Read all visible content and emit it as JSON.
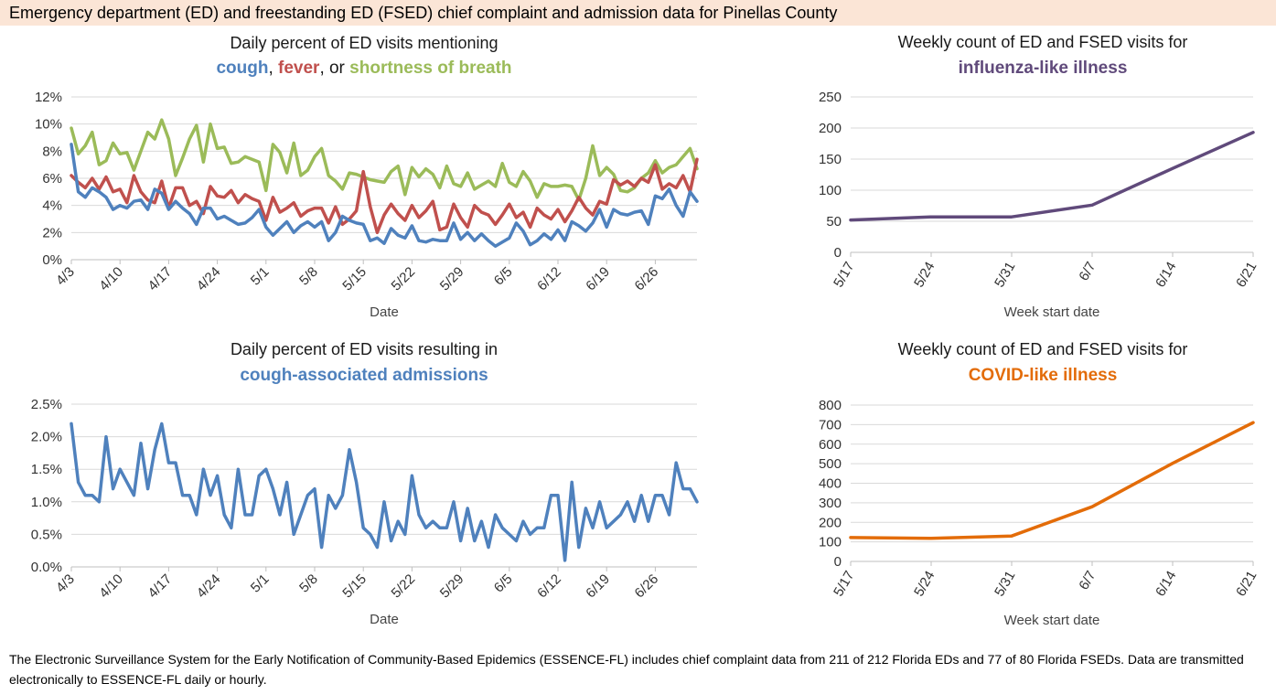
{
  "header": {
    "title": "Emergency department (ED) and freestanding ED (FSED) chief complaint and admission data for Pinellas County"
  },
  "footer": {
    "text": "The Electronic Surveillance System for the Early Notification of Community-Based Epidemics (ESSENCE-FL) includes chief complaint data from 211 of 212 Florida EDs and 77 of 80 Florida FSEDs. Data are transmitted electronically to ESSENCE-FL daily or hourly."
  },
  "chart_data": [
    {
      "id": "symptoms",
      "type": "line",
      "title": "Daily percent of ED visits mentioning",
      "subtitle_parts": [
        {
          "text": "cough",
          "color": "#4f81bd"
        },
        {
          "text": ", ",
          "color": "#1a1a1a"
        },
        {
          "text": "fever",
          "color": "#c0504d"
        },
        {
          "text": ", or ",
          "color": "#1a1a1a"
        },
        {
          "text": "shortness of breath",
          "color": "#9bbb59"
        }
      ],
      "xlabel": "Date",
      "ylabel": "",
      "ylim": [
        0,
        12
      ],
      "yticks": [
        "0%",
        "2%",
        "4%",
        "6%",
        "8%",
        "10%",
        "12%"
      ],
      "xticks": [
        "4/3",
        "4/10",
        "4/17",
        "4/24",
        "5/1",
        "5/8",
        "5/15",
        "5/22",
        "5/29",
        "6/5",
        "6/12",
        "6/19",
        "6/26"
      ],
      "n_points": 91,
      "series": [
        {
          "name": "shortness of breath",
          "color": "#9bbb59",
          "values": [
            9.7,
            7.8,
            8.4,
            9.4,
            7.0,
            7.3,
            8.6,
            7.8,
            7.9,
            6.6,
            8.0,
            9.4,
            8.9,
            10.3,
            8.9,
            6.2,
            7.5,
            8.9,
            9.9,
            7.2,
            10.0,
            8.2,
            8.3,
            7.1,
            7.2,
            7.6,
            7.4,
            7.2,
            5.1,
            8.5,
            7.9,
            6.4,
            8.6,
            6.2,
            6.6,
            7.6,
            8.2,
            6.2,
            5.8,
            5.2,
            6.4,
            6.3,
            6.1,
            5.9,
            5.8,
            5.7,
            6.5,
            6.9,
            4.8,
            6.8,
            6.1,
            6.7,
            6.3,
            5.3,
            6.9,
            5.6,
            5.4,
            6.4,
            5.2,
            5.5,
            5.8,
            5.4,
            7.1,
            5.7,
            5.4,
            6.5,
            5.8,
            4.6,
            5.6,
            5.4,
            5.4,
            5.5,
            5.4,
            4.4,
            6.0,
            8.4,
            6.2,
            6.8,
            6.3,
            5.1,
            5.0,
            5.3,
            6.0,
            6.4,
            7.3,
            6.4,
            6.8,
            7.0,
            7.6,
            8.2,
            6.7
          ]
        },
        {
          "name": "fever",
          "color": "#c0504d",
          "values": [
            6.2,
            5.7,
            5.3,
            6.0,
            5.2,
            6.1,
            5.0,
            5.2,
            4.2,
            6.2,
            5.0,
            4.4,
            4.2,
            5.8,
            3.8,
            5.3,
            5.3,
            4.0,
            4.3,
            3.4,
            5.4,
            4.7,
            4.6,
            5.1,
            4.2,
            4.8,
            4.5,
            4.3,
            2.9,
            4.6,
            3.5,
            3.8,
            4.2,
            3.2,
            3.6,
            3.8,
            3.8,
            2.7,
            3.9,
            2.6,
            3.0,
            3.6,
            6.5,
            3.9,
            2.0,
            3.3,
            4.1,
            3.4,
            2.9,
            4.0,
            3.1,
            3.6,
            4.3,
            2.2,
            2.4,
            4.1,
            3.1,
            2.4,
            4.0,
            3.5,
            3.3,
            2.6,
            3.3,
            4.1,
            3.1,
            3.5,
            2.4,
            3.8,
            3.3,
            3.0,
            3.7,
            2.8,
            3.6,
            4.6,
            3.8,
            3.3,
            4.3,
            4.1,
            5.9,
            5.5,
            5.8,
            5.4,
            6.0,
            5.7,
            7.0,
            5.2,
            5.6,
            5.3,
            6.2,
            5.0,
            7.4
          ]
        },
        {
          "name": "cough",
          "color": "#4f81bd",
          "values": [
            8.5,
            5.0,
            4.6,
            5.3,
            5.0,
            4.6,
            3.7,
            4.0,
            3.8,
            4.3,
            4.4,
            3.7,
            5.2,
            4.9,
            3.7,
            4.3,
            3.8,
            3.4,
            2.6,
            3.8,
            3.8,
            3.0,
            3.2,
            2.9,
            2.6,
            2.7,
            3.1,
            3.7,
            2.4,
            1.8,
            2.3,
            2.8,
            2.0,
            2.5,
            2.8,
            2.4,
            2.8,
            1.4,
            2.0,
            3.2,
            2.9,
            2.7,
            2.6,
            1.4,
            1.6,
            1.2,
            2.3,
            1.8,
            1.6,
            2.5,
            1.4,
            1.3,
            1.5,
            1.4,
            1.4,
            2.7,
            1.5,
            2.0,
            1.4,
            1.9,
            1.4,
            1.0,
            1.3,
            1.6,
            2.7,
            2.1,
            1.1,
            1.4,
            1.9,
            1.5,
            2.2,
            1.4,
            2.8,
            2.5,
            2.1,
            2.7,
            3.7,
            2.4,
            3.7,
            3.4,
            3.3,
            3.5,
            3.6,
            2.6,
            4.7,
            4.5,
            5.2,
            4.0,
            3.2,
            5.0,
            4.3
          ]
        }
      ]
    },
    {
      "id": "admissions",
      "type": "line",
      "title": "Daily percent of ED visits resulting in",
      "subtitle_parts": [
        {
          "text": "cough-associated admissions",
          "color": "#4f81bd"
        }
      ],
      "xlabel": "Date",
      "ylabel": "",
      "ylim": [
        0,
        2.5
      ],
      "yticks": [
        "0.0%",
        "0.5%",
        "1.0%",
        "1.5%",
        "2.0%",
        "2.5%"
      ],
      "xticks": [
        "4/3",
        "4/10",
        "4/17",
        "4/24",
        "5/1",
        "5/8",
        "5/15",
        "5/22",
        "5/29",
        "6/5",
        "6/12",
        "6/19",
        "6/26"
      ],
      "n_points": 91,
      "series": [
        {
          "name": "cough-associated admissions",
          "color": "#4f81bd",
          "values": [
            2.2,
            1.3,
            1.1,
            1.1,
            1.0,
            2.0,
            1.2,
            1.5,
            1.3,
            1.1,
            1.9,
            1.2,
            1.8,
            2.2,
            1.6,
            1.6,
            1.1,
            1.1,
            0.8,
            1.5,
            1.1,
            1.4,
            0.8,
            0.6,
            1.5,
            0.8,
            0.8,
            1.4,
            1.5,
            1.2,
            0.8,
            1.3,
            0.5,
            0.8,
            1.1,
            1.2,
            0.3,
            1.1,
            0.9,
            1.1,
            1.8,
            1.3,
            0.6,
            0.5,
            0.3,
            1.0,
            0.4,
            0.7,
            0.5,
            1.4,
            0.8,
            0.6,
            0.7,
            0.6,
            0.6,
            1.0,
            0.4,
            0.9,
            0.4,
            0.7,
            0.3,
            0.8,
            0.6,
            0.5,
            0.4,
            0.7,
            0.5,
            0.6,
            0.6,
            1.1,
            1.1,
            0.1,
            1.3,
            0.3,
            0.9,
            0.6,
            1.0,
            0.6,
            0.7,
            0.8,
            1.0,
            0.7,
            1.1,
            0.7,
            1.1,
            1.1,
            0.8,
            1.6,
            1.2,
            1.2,
            1.0
          ]
        }
      ]
    },
    {
      "id": "ili",
      "type": "line",
      "title": "Weekly count of ED and FSED visits for",
      "subtitle_parts": [
        {
          "text": "influenza-like illness",
          "color": "#604a7b"
        }
      ],
      "xlabel": "Week start date",
      "ylabel": "",
      "ylim": [
        0,
        250
      ],
      "yticks": [
        "0",
        "50",
        "100",
        "150",
        "200",
        "250"
      ],
      "categories": [
        "5/17",
        "5/24",
        "5/31",
        "6/7",
        "6/14",
        "6/21"
      ],
      "series": [
        {
          "name": "influenza-like illness",
          "color": "#604a7b",
          "values": [
            52,
            57,
            57,
            76,
            135,
            193
          ]
        }
      ]
    },
    {
      "id": "cli",
      "type": "line",
      "title": "Weekly count of ED and FSED visits for",
      "subtitle_parts": [
        {
          "text": "COVID-like illness",
          "color": "#e36c09"
        }
      ],
      "xlabel": "Week start date",
      "ylabel": "",
      "ylim": [
        0,
        800
      ],
      "yticks": [
        "0",
        "100",
        "200",
        "300",
        "400",
        "500",
        "600",
        "700",
        "800"
      ],
      "categories": [
        "5/17",
        "5/24",
        "5/31",
        "6/7",
        "6/14",
        "6/21"
      ],
      "series": [
        {
          "name": "COVID-like illness",
          "color": "#e36c09",
          "values": [
            122,
            118,
            130,
            280,
            502,
            710
          ]
        }
      ]
    }
  ]
}
